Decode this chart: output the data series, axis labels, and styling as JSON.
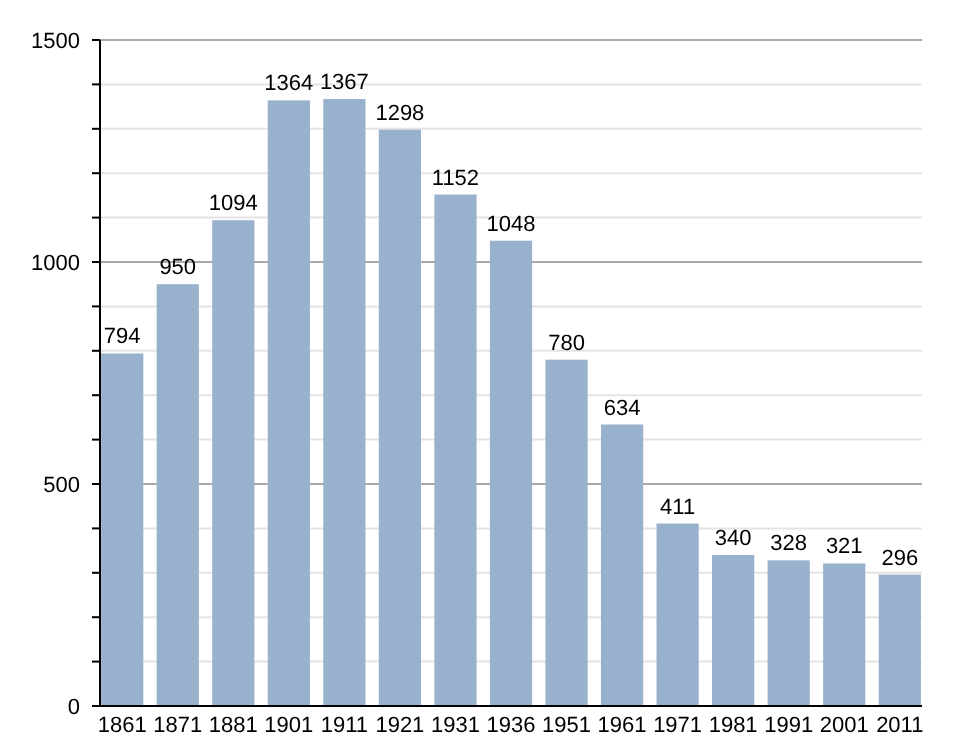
{
  "chart_data": {
    "type": "bar",
    "categories": [
      "1861",
      "1871",
      "1881",
      "1901",
      "1911",
      "1921",
      "1931",
      "1936",
      "1951",
      "1961",
      "1971",
      "1981",
      "1991",
      "2001",
      "2011"
    ],
    "values": [
      794,
      950,
      1094,
      1364,
      1367,
      1298,
      1152,
      1048,
      780,
      634,
      411,
      340,
      328,
      321,
      296
    ],
    "color": "#98b1cc",
    "ylim": [
      0,
      1500
    ],
    "yticks": [
      0,
      {
        "value": 100,
        "label": null
      },
      {
        "value": 200,
        "label": null
      },
      {
        "value": 300,
        "label": null
      },
      {
        "value": 400,
        "label": null
      },
      500,
      {
        "value": 600,
        "label": null
      },
      {
        "value": 700,
        "label": null
      },
      {
        "value": 800,
        "label": null
      },
      {
        "value": 900,
        "label": null
      },
      1000,
      {
        "value": 1100,
        "label": null
      },
      {
        "value": 1200,
        "label": null
      },
      {
        "value": 1300,
        "label": null
      },
      {
        "value": 1400,
        "label": null
      },
      1500
    ],
    "grid": "y",
    "data_labels": true
  }
}
